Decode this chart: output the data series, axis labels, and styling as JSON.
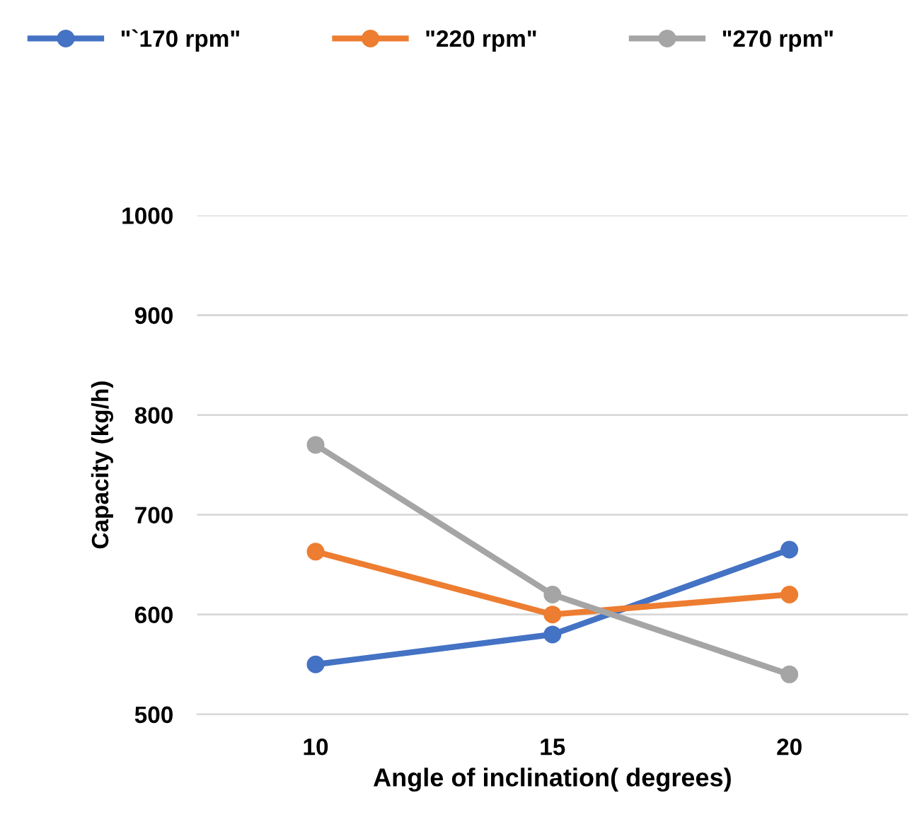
{
  "chart_data": {
    "type": "line",
    "xlabel": "Angle of inclination( degrees)",
    "ylabel": "Capacity (kg/h)",
    "categories": [
      "10",
      "15",
      "20"
    ],
    "series": [
      {
        "name": "\"`170 rpm\"",
        "color": "#4472c4",
        "values": [
          550,
          580,
          665
        ]
      },
      {
        "name": "\"220 rpm\"",
        "color": "#ed7d31",
        "values": [
          663,
          600,
          620
        ]
      },
      {
        "name": "\"270 rpm\"",
        "color": "#a5a5a5",
        "values": [
          770,
          620,
          540
        ]
      }
    ],
    "ylim": [
      500,
      1000
    ],
    "yticks": [
      500,
      600,
      700,
      800,
      900,
      1000
    ],
    "grid": "y",
    "legend": "top",
    "marker": "circle",
    "line_style": "solid"
  }
}
